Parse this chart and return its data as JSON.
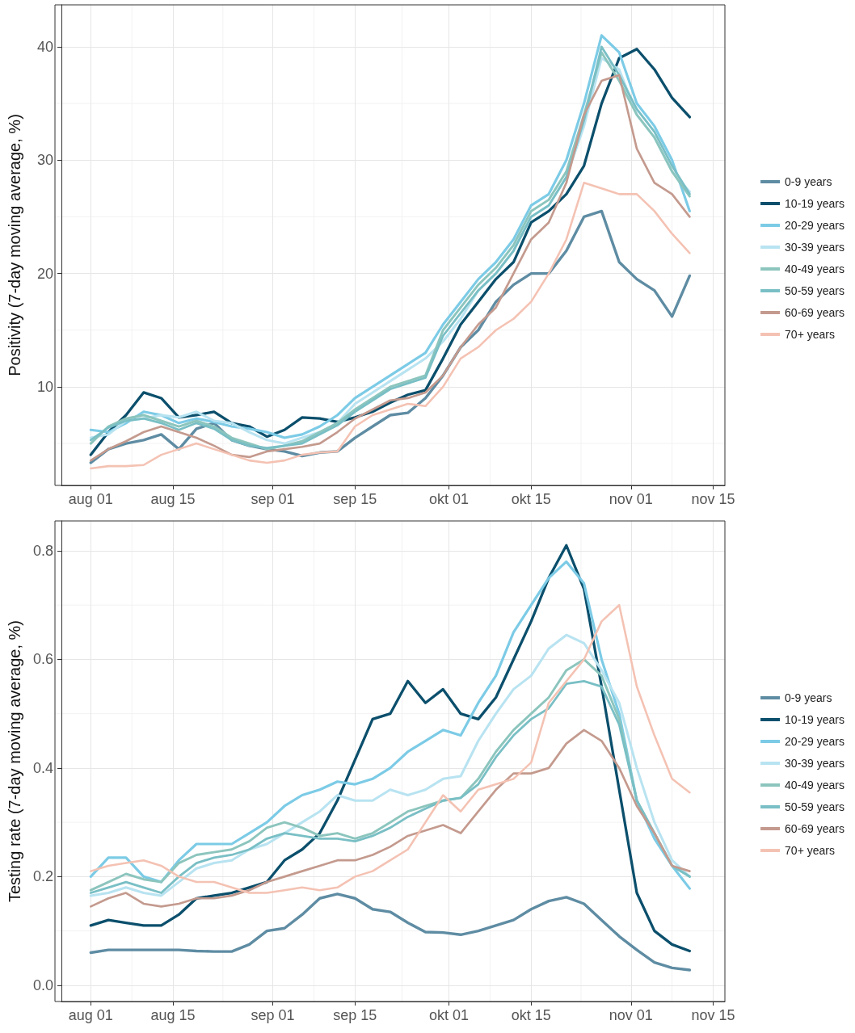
{
  "chart_data": [
    {
      "type": "line",
      "ylabel": "Positivity (7-day moving average, %)",
      "x": [
        "--08-01",
        "--08-04",
        "--08-07",
        "--08-10",
        "--08-13",
        "--08-16",
        "--08-19",
        "--08-22",
        "--08-25",
        "--08-28",
        "--08-31",
        "--09-03",
        "--09-06",
        "--09-09",
        "--09-12",
        "--09-15",
        "--09-18",
        "--09-21",
        "--09-24",
        "--09-27",
        "--09-30",
        "--10-03",
        "--10-06",
        "--10-09",
        "--10-12",
        "--10-15",
        "--10-18",
        "--10-21",
        "--10-24",
        "--10-27",
        "--10-30",
        "--11-02",
        "--11-05",
        "--11-08",
        "--11-11"
      ],
      "xlim": [
        "--07-27",
        "--11-17"
      ],
      "xticks": [
        {
          "value": "--08-01",
          "label": "aug 01"
        },
        {
          "value": "--08-15",
          "label": "aug 15"
        },
        {
          "value": "--09-01",
          "label": "sep 01"
        },
        {
          "value": "--09-15",
          "label": "sep 15"
        },
        {
          "value": "--10-01",
          "label": "okt 01"
        },
        {
          "value": "--10-15",
          "label": "okt 15"
        },
        {
          "value": "--11-01",
          "label": "nov 01"
        },
        {
          "value": "--11-15",
          "label": "nov 15"
        }
      ],
      "ylim": [
        1.3,
        43.7
      ],
      "yticks": [
        10,
        20,
        30,
        40
      ],
      "grid": true,
      "legend": "right",
      "marker": "none",
      "line_style": "solid",
      "series": [
        {
          "name": "0-9 years",
          "color": "#5e8ca3",
          "values": [
            3.3,
            4.5,
            5,
            5.3,
            5.8,
            4.5,
            6.3,
            6.8,
            5.3,
            4.8,
            4.5,
            4.3,
            3.9,
            4.2,
            4.3,
            5.5,
            6.5,
            7.5,
            7.7,
            9,
            11,
            13.5,
            15,
            17.5,
            19,
            20,
            20,
            22,
            25,
            25.5,
            21,
            19.5,
            18.5,
            16.2,
            19.8
          ]
        },
        {
          "name": "10-19 years",
          "color": "#0b4f6c",
          "values": [
            4,
            6,
            7.5,
            9.5,
            9,
            7.3,
            7.5,
            7.8,
            6.8,
            6.5,
            5.6,
            6.2,
            7.3,
            7.2,
            6.9,
            7.3,
            7.8,
            8.6,
            9.3,
            9.7,
            12.5,
            15.5,
            17.5,
            19.5,
            21,
            24.5,
            25.5,
            27,
            29.5,
            35,
            39,
            39.8,
            38,
            35.5,
            33.8
          ]
        },
        {
          "name": "20-29 years",
          "color": "#7ccbe6",
          "values": [
            6.2,
            6,
            6.8,
            7.8,
            7.5,
            6.8,
            7.2,
            6.9,
            6.5,
            6.3,
            6,
            5.5,
            5.8,
            6.5,
            7.5,
            9,
            10,
            11,
            12,
            13,
            15.5,
            17.5,
            19.5,
            21,
            23,
            26,
            27,
            30,
            35,
            41,
            39.5,
            35,
            33,
            30,
            25.5
          ]
        },
        {
          "name": "30-39 years",
          "color": "#b8e3f1",
          "values": [
            5.5,
            5.8,
            7,
            7.2,
            7.5,
            7.3,
            7.8,
            7,
            6.8,
            6,
            5.3,
            5,
            5.5,
            6,
            6.8,
            8.5,
            9.5,
            10.5,
            11.5,
            12.5,
            14,
            16,
            18.5,
            20,
            22,
            25,
            26,
            28.5,
            33,
            39,
            38,
            34,
            32,
            29,
            27.2
          ]
        },
        {
          "name": "40-49 years",
          "color": "#8cc5bd",
          "values": [
            5,
            6.5,
            7.2,
            7.5,
            7,
            6.5,
            7,
            6.5,
            5.5,
            5,
            4.5,
            4.8,
            5.2,
            6,
            6.8,
            8,
            9,
            10,
            10.5,
            11,
            15,
            17,
            19,
            20.5,
            22.5,
            25.5,
            26.5,
            29,
            34,
            39.5,
            37,
            34,
            32,
            29,
            26.8
          ]
        },
        {
          "name": "50-59 years",
          "color": "#79bfc5",
          "values": [
            5.3,
            6.4,
            7,
            7.2,
            6.8,
            6.2,
            6.8,
            6.3,
            5.3,
            4.8,
            4.6,
            4.8,
            5,
            5.8,
            6.6,
            7.8,
            8.8,
            9.8,
            10.3,
            10.8,
            14.5,
            16.5,
            18.5,
            20,
            22,
            25,
            26,
            28.5,
            33.5,
            40,
            37.5,
            34.5,
            32.5,
            29.5,
            27
          ]
        },
        {
          "name": "60-69 years",
          "color": "#c49a8e",
          "values": [
            3.5,
            4.5,
            5.2,
            6,
            6.5,
            6,
            5.5,
            4.8,
            4,
            3.8,
            4.3,
            4.5,
            4.7,
            5,
            6,
            7.2,
            8,
            8.8,
            9,
            9.5,
            11,
            13.5,
            15.5,
            17,
            20,
            23,
            24.5,
            28,
            34,
            37,
            37.5,
            31,
            28,
            27,
            25
          ]
        },
        {
          "name": "70+ years",
          "color": "#f4c2b3",
          "values": [
            2.8,
            3,
            3,
            3.1,
            4,
            4.5,
            5,
            4.5,
            4,
            3.5,
            3.3,
            3.5,
            4,
            4.2,
            4.3,
            6.5,
            7.5,
            8,
            8.5,
            8.3,
            10,
            12.5,
            13.5,
            15,
            16,
            17.5,
            20,
            23,
            28,
            27.5,
            27,
            27,
            25.5,
            23.5,
            21.8
          ]
        }
      ]
    },
    {
      "type": "line",
      "ylabel": "Testing rate (7-day moving average, %)",
      "x": [
        "--08-01",
        "--08-04",
        "--08-07",
        "--08-10",
        "--08-13",
        "--08-16",
        "--08-19",
        "--08-22",
        "--08-25",
        "--08-28",
        "--08-31",
        "--09-03",
        "--09-06",
        "--09-09",
        "--09-12",
        "--09-15",
        "--09-18",
        "--09-21",
        "--09-24",
        "--09-27",
        "--09-30",
        "--10-03",
        "--10-06",
        "--10-09",
        "--10-12",
        "--10-15",
        "--10-18",
        "--10-21",
        "--10-24",
        "--10-27",
        "--10-30",
        "--11-02",
        "--11-05",
        "--11-08",
        "--11-11"
      ],
      "xlim": [
        "--07-27",
        "--11-17"
      ],
      "xticks": [
        {
          "value": "--08-01",
          "label": "aug 01"
        },
        {
          "value": "--08-15",
          "label": "aug 15"
        },
        {
          "value": "--09-01",
          "label": "sep 01"
        },
        {
          "value": "--09-15",
          "label": "sep 15"
        },
        {
          "value": "--10-01",
          "label": "okt 01"
        },
        {
          "value": "--10-15",
          "label": "okt 15"
        },
        {
          "value": "--11-01",
          "label": "nov 01"
        },
        {
          "value": "--11-15",
          "label": "nov 15"
        }
      ],
      "ylim": [
        -0.03,
        0.855
      ],
      "yticks": [
        {
          "value": 0,
          "label": "0.0"
        },
        0.2,
        0.4,
        0.6,
        0.8
      ],
      "grid": true,
      "legend": "right",
      "marker": "none",
      "line_style": "solid",
      "series": [
        {
          "name": "0-9 years",
          "color": "#5e8ca3",
          "values": [
            0.06,
            0.065,
            0.065,
            0.065,
            0.065,
            0.065,
            0.063,
            0.062,
            0.062,
            0.075,
            0.1,
            0.105,
            0.13,
            0.16,
            0.168,
            0.16,
            0.14,
            0.135,
            0.115,
            0.098,
            0.097,
            0.093,
            0.1,
            0.11,
            0.12,
            0.14,
            0.155,
            0.162,
            0.15,
            0.12,
            0.09,
            0.065,
            0.042,
            0.032,
            0.028
          ]
        },
        {
          "name": "10-19 years",
          "color": "#0b4f6c",
          "values": [
            0.11,
            0.12,
            0.115,
            0.11,
            0.11,
            0.13,
            0.16,
            0.165,
            0.17,
            0.18,
            0.19,
            0.23,
            0.25,
            0.28,
            0.34,
            0.415,
            0.49,
            0.5,
            0.56,
            0.52,
            0.545,
            0.5,
            0.49,
            0.53,
            0.6,
            0.67,
            0.75,
            0.81,
            0.73,
            0.55,
            0.36,
            0.17,
            0.1,
            0.075,
            0.063
          ]
        },
        {
          "name": "20-29 years",
          "color": "#7ccbe6",
          "values": [
            0.2,
            0.235,
            0.235,
            0.2,
            0.19,
            0.23,
            0.26,
            0.26,
            0.26,
            0.28,
            0.3,
            0.33,
            0.35,
            0.36,
            0.375,
            0.37,
            0.38,
            0.4,
            0.43,
            0.45,
            0.47,
            0.46,
            0.52,
            0.57,
            0.65,
            0.7,
            0.75,
            0.78,
            0.74,
            0.6,
            0.5,
            0.34,
            0.27,
            0.22,
            0.178
          ]
        },
        {
          "name": "30-39 years",
          "color": "#b8e3f1",
          "values": [
            0.165,
            0.17,
            0.18,
            0.17,
            0.165,
            0.19,
            0.215,
            0.225,
            0.23,
            0.25,
            0.26,
            0.28,
            0.3,
            0.32,
            0.35,
            0.34,
            0.34,
            0.36,
            0.35,
            0.36,
            0.38,
            0.385,
            0.45,
            0.5,
            0.545,
            0.57,
            0.62,
            0.645,
            0.63,
            0.58,
            0.52,
            0.4,
            0.3,
            0.23,
            0.2
          ]
        },
        {
          "name": "40-49 years",
          "color": "#8cc5bd",
          "values": [
            0.175,
            0.19,
            0.205,
            0.195,
            0.19,
            0.225,
            0.24,
            0.245,
            0.25,
            0.265,
            0.29,
            0.3,
            0.29,
            0.275,
            0.28,
            0.27,
            0.28,
            0.3,
            0.32,
            0.33,
            0.34,
            0.345,
            0.38,
            0.43,
            0.47,
            0.5,
            0.53,
            0.58,
            0.6,
            0.57,
            0.49,
            0.34,
            0.28,
            0.22,
            0.2
          ]
        },
        {
          "name": "50-59 years",
          "color": "#79bfc5",
          "values": [
            0.17,
            0.18,
            0.19,
            0.18,
            0.17,
            0.2,
            0.225,
            0.235,
            0.24,
            0.25,
            0.27,
            0.28,
            0.275,
            0.27,
            0.27,
            0.265,
            0.275,
            0.29,
            0.31,
            0.325,
            0.34,
            0.345,
            0.37,
            0.42,
            0.46,
            0.49,
            0.51,
            0.555,
            0.56,
            0.55,
            0.48,
            0.34,
            0.28,
            0.22,
            0.2
          ]
        },
        {
          "name": "60-69 years",
          "color": "#c49a8e",
          "values": [
            0.145,
            0.16,
            0.17,
            0.15,
            0.145,
            0.15,
            0.16,
            0.16,
            0.165,
            0.175,
            0.19,
            0.2,
            0.21,
            0.22,
            0.23,
            0.23,
            0.24,
            0.255,
            0.275,
            0.285,
            0.295,
            0.28,
            0.32,
            0.36,
            0.39,
            0.39,
            0.4,
            0.445,
            0.47,
            0.45,
            0.4,
            0.33,
            0.28,
            0.22,
            0.21
          ]
        },
        {
          "name": "70+ years",
          "color": "#f4c2b3",
          "values": [
            0.21,
            0.22,
            0.225,
            0.23,
            0.22,
            0.2,
            0.19,
            0.19,
            0.18,
            0.17,
            0.17,
            0.175,
            0.18,
            0.175,
            0.18,
            0.2,
            0.21,
            0.23,
            0.25,
            0.3,
            0.35,
            0.32,
            0.36,
            0.37,
            0.38,
            0.41,
            0.52,
            0.56,
            0.6,
            0.67,
            0.7,
            0.55,
            0.46,
            0.38,
            0.355
          ]
        }
      ]
    }
  ]
}
